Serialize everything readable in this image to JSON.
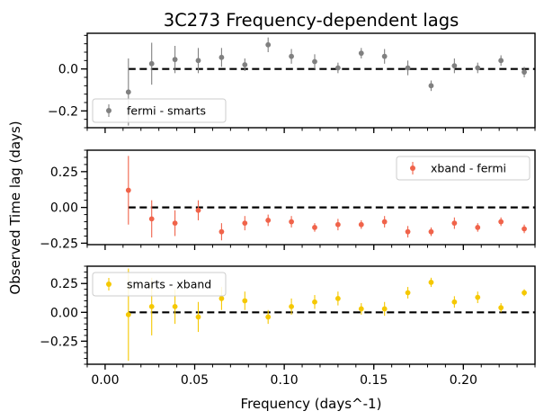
{
  "title": "3C273    Frequency-dependent lags",
  "chart_data": {
    "type": "scatter",
    "title": "3C273    Frequency-dependent lags",
    "xlabel": "Frequency (days^-1)",
    "ylabel": "Observed Time lag (days)",
    "xlim": [
      -0.01,
      0.24
    ],
    "x_ticks": [
      0.0,
      0.05,
      0.1,
      0.15,
      0.2
    ],
    "x_tick_labels": [
      "0.00",
      "0.05",
      "0.10",
      "0.15",
      "0.20"
    ],
    "x": [
      0.013,
      0.026,
      0.039,
      0.052,
      0.065,
      0.078,
      0.091,
      0.104,
      0.117,
      0.13,
      0.143,
      0.156,
      0.169,
      0.182,
      0.195,
      0.208,
      0.221,
      0.234
    ],
    "zero_line_from": 0.013,
    "panels": [
      {
        "series_name": "fermi - smarts",
        "color": "#808080",
        "legend_position": "lower-left",
        "ylim": [
          -0.28,
          0.17
        ],
        "y_ticks": [
          0.0,
          -0.2
        ],
        "y_tick_labels": [
          "0.0",
          "−0.2"
        ],
        "values": [
          -0.11,
          0.025,
          0.045,
          0.04,
          0.055,
          0.02,
          0.115,
          0.06,
          0.035,
          0.005,
          0.075,
          0.06,
          0.005,
          -0.08,
          0.015,
          0.005,
          0.04,
          -0.015
        ],
        "errors": [
          0.16,
          0.1,
          0.065,
          0.06,
          0.045,
          0.03,
          0.035,
          0.035,
          0.035,
          0.025,
          0.025,
          0.035,
          0.035,
          0.025,
          0.035,
          0.025,
          0.025,
          0.025
        ]
      },
      {
        "series_name": "xband - fermi",
        "color": "#f0634a",
        "legend_position": "upper-right",
        "ylim": [
          -0.26,
          0.4
        ],
        "y_ticks": [
          0.25,
          0.0,
          -0.25
        ],
        "y_tick_labels": [
          "0.25",
          "0.00",
          "−0.25"
        ],
        "values": [
          0.12,
          -0.08,
          -0.11,
          -0.02,
          -0.17,
          -0.11,
          -0.09,
          -0.1,
          -0.14,
          -0.12,
          -0.12,
          -0.1,
          -0.17,
          -0.17,
          -0.11,
          -0.14,
          -0.1,
          -0.15
        ],
        "errors": [
          0.24,
          0.13,
          0.09,
          0.07,
          0.06,
          0.05,
          0.04,
          0.04,
          0.03,
          0.04,
          0.03,
          0.04,
          0.04,
          0.03,
          0.04,
          0.03,
          0.03,
          0.03
        ]
      },
      {
        "series_name": "smarts - xband",
        "color": "#f5c800",
        "legend_position": "upper-left",
        "ylim": [
          -0.45,
          0.4
        ],
        "y_ticks": [
          0.25,
          0.0,
          -0.25
        ],
        "y_tick_labels": [
          "0.25",
          "0.00",
          "−0.25"
        ],
        "values": [
          -0.02,
          0.05,
          0.05,
          -0.04,
          0.12,
          0.1,
          -0.04,
          0.05,
          0.09,
          0.12,
          0.03,
          0.03,
          0.17,
          0.26,
          0.09,
          0.13,
          0.04,
          0.17
        ],
        "errors": [
          0.4,
          0.25,
          0.15,
          0.13,
          0.1,
          0.08,
          0.06,
          0.07,
          0.06,
          0.06,
          0.05,
          0.06,
          0.05,
          0.04,
          0.05,
          0.05,
          0.04,
          0.03
        ]
      }
    ]
  }
}
